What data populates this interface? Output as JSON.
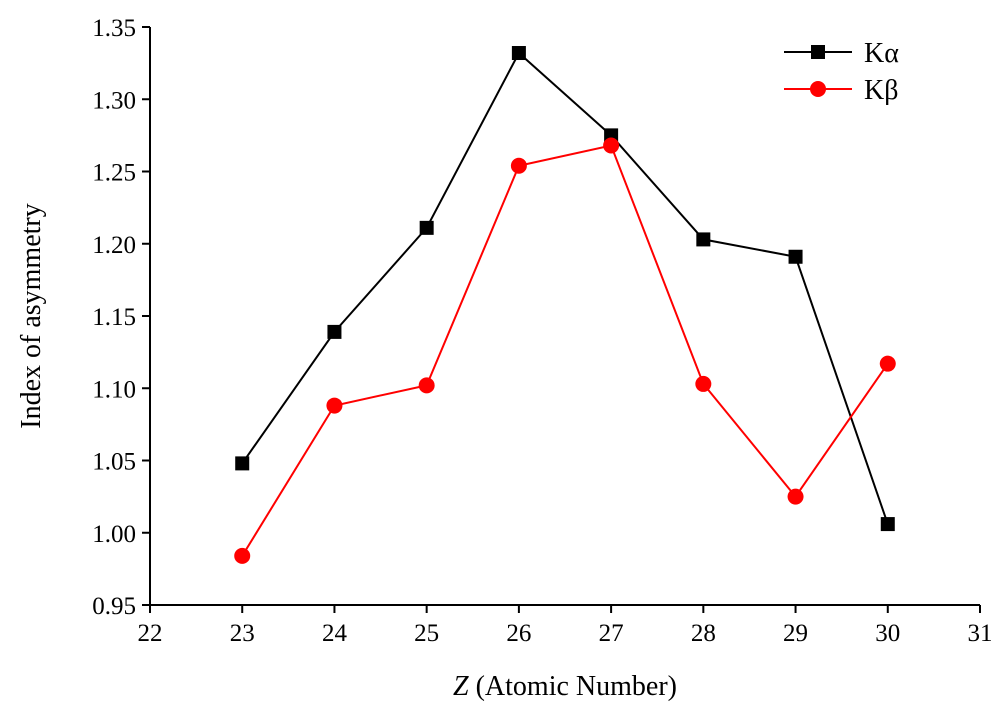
{
  "chart_data": {
    "type": "line",
    "title": "",
    "xlabel_italic": "Z",
    "xlabel_rest": " (Atomic Number)",
    "ylabel": "Index of asymmetry",
    "xlim": [
      22,
      31
    ],
    "ylim": [
      0.95,
      1.35
    ],
    "xticks": [
      "22",
      "23",
      "24",
      "25",
      "26",
      "27",
      "28",
      "29",
      "30",
      "31"
    ],
    "yticks": [
      "0.95",
      "1.00",
      "1.05",
      "1.10",
      "1.15",
      "1.20",
      "1.25",
      "1.30",
      "1.35"
    ],
    "grid": false,
    "legend_position": "top-right",
    "x": [
      23,
      24,
      25,
      26,
      27,
      28,
      29,
      30
    ],
    "series": [
      {
        "name": "Kα",
        "color": "#000000",
        "marker": "square",
        "values": [
          1.048,
          1.139,
          1.211,
          1.332,
          1.275,
          1.203,
          1.191,
          1.006
        ]
      },
      {
        "name": "Kβ",
        "color": "#ff0000",
        "marker": "circle",
        "values": [
          0.984,
          1.088,
          1.102,
          1.254,
          1.268,
          1.103,
          1.025,
          1.117
        ]
      }
    ]
  }
}
